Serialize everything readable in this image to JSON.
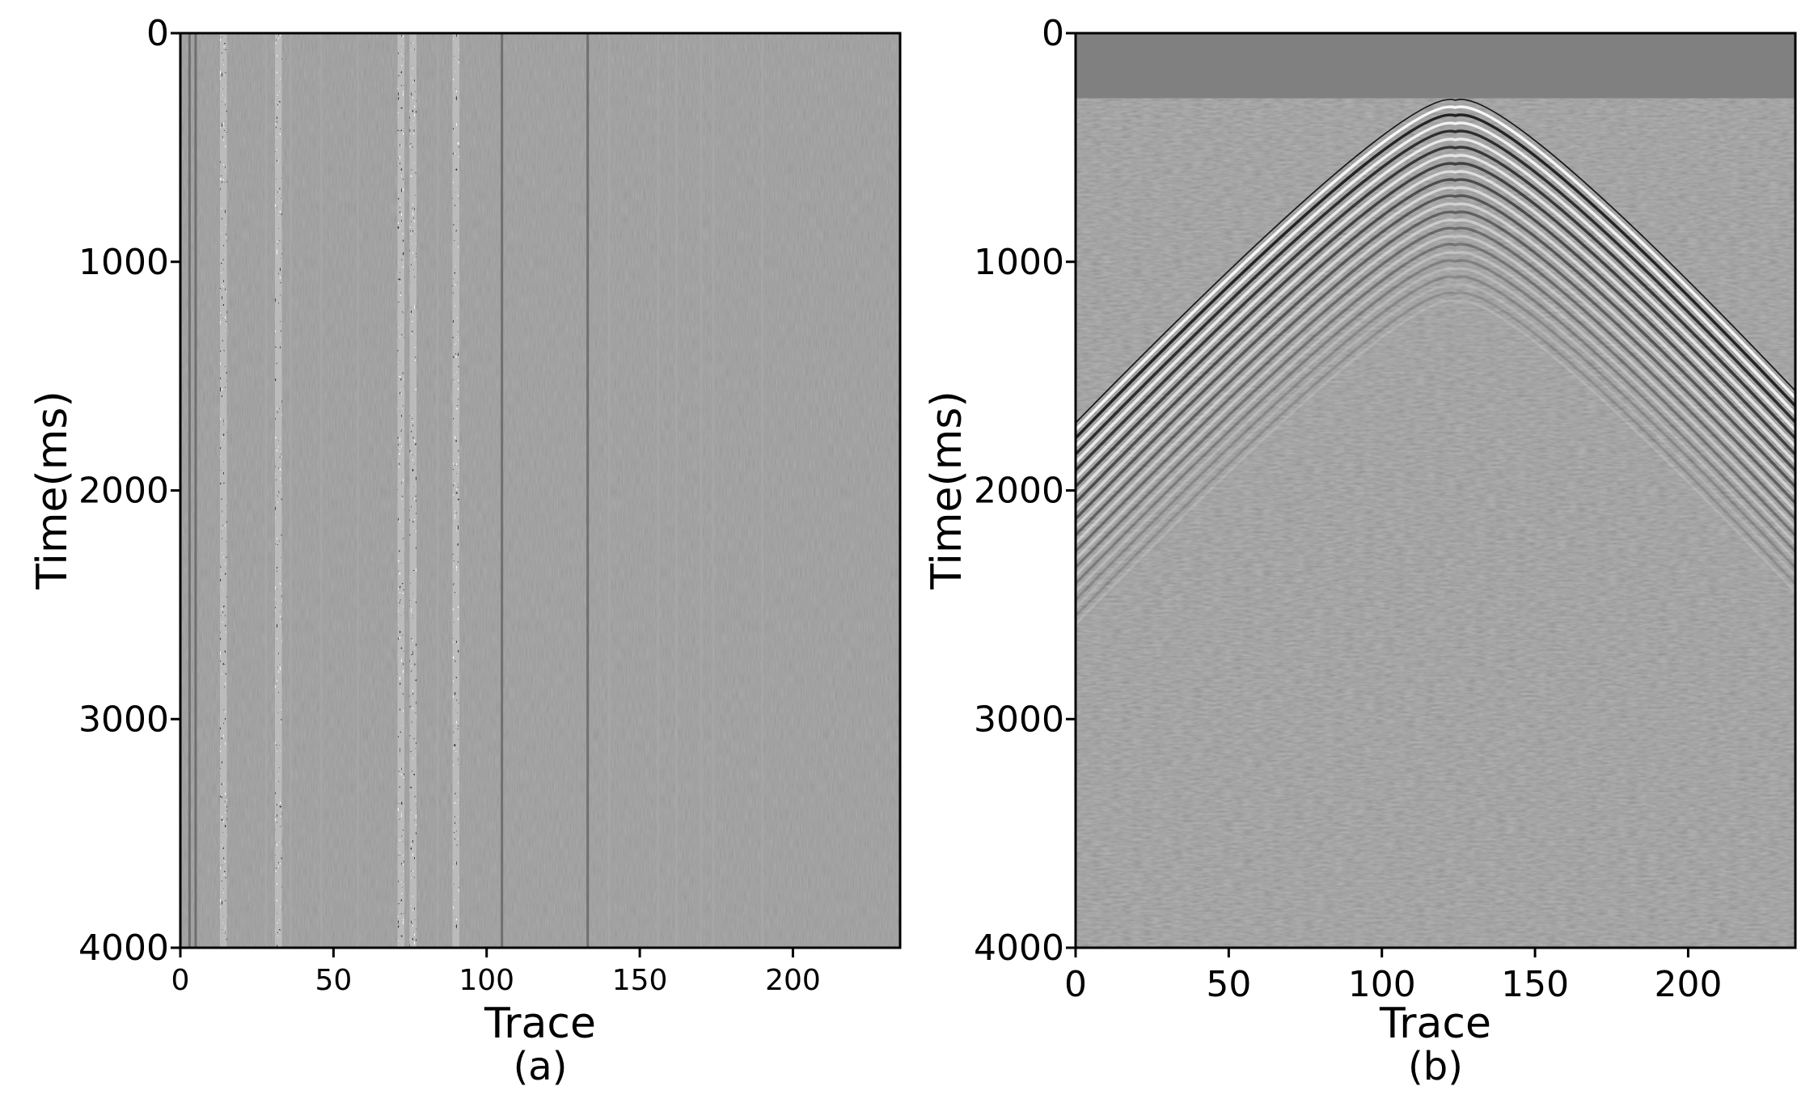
{
  "chart_data": [
    {
      "type": "heatmap",
      "panel_label": "(a)",
      "xlabel": "Trace",
      "ylabel": "Time(ms)",
      "xlim": [
        0,
        235
      ],
      "ylim": [
        4000,
        0
      ],
      "xticks": [
        0,
        50,
        100,
        150,
        200
      ],
      "yticks": [
        0,
        1000,
        2000,
        3000,
        4000
      ],
      "background_gray": "#808080",
      "colormap": "gray",
      "description_values": {
        "strong_noisy_traces": [
          14,
          32,
          72,
          76,
          90
        ],
        "weak_noisy_traces": [
          3,
          5,
          28,
          36,
          46,
          58,
          84,
          105,
          133,
          140,
          156,
          162,
          170,
          174,
          190
        ]
      }
    },
    {
      "type": "heatmap",
      "panel_label": "(b)",
      "xlabel": "Trace",
      "ylabel": "Time(ms)",
      "xlim": [
        0,
        235
      ],
      "ylim": [
        4000,
        0
      ],
      "xticks": [
        0,
        50,
        100,
        150,
        200
      ],
      "yticks": [
        0,
        1000,
        2000,
        3000,
        4000
      ],
      "background_gray": "#808080",
      "colormap": "gray",
      "first_break_apex": {
        "trace": 124,
        "time_ms": 290
      },
      "first_break_edges": [
        {
          "trace": 0,
          "time_ms": 1700
        },
        {
          "trace": 235,
          "time_ms": 1560
        }
      ]
    }
  ]
}
